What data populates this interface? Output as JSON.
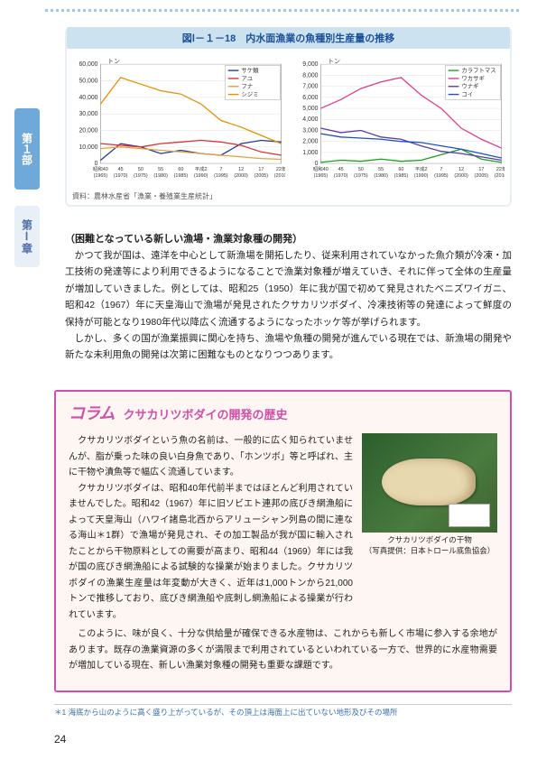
{
  "sideTabs": {
    "tab1": "第１部",
    "tab2": "第Ⅰ章"
  },
  "chartBlock": {
    "title": "図Ⅰ－１－18　内水面漁業の魚種別生産量の推移",
    "caption": "資料：農林水産省「漁業・養殖業生産統計」",
    "chart1": {
      "yUnit": "トン",
      "yMax": 60000,
      "yStep": 10000,
      "xLabelsTop": [
        "昭和40",
        "45",
        "50",
        "55",
        "60",
        "平成2",
        "7",
        "12",
        "17",
        "22年"
      ],
      "xLabelsBottom": [
        "(1965)",
        "(1970)",
        "(1975)",
        "(1980)",
        "(1985)",
        "(1990)",
        "(1995)",
        "(2000)",
        "(2005)",
        "(2010)"
      ],
      "series": [
        {
          "name": "サケ類",
          "color": "#1f3a9a",
          "values": [
            2000,
            12000,
            10000,
            6000,
            8000,
            6000,
            5000,
            12000,
            14000,
            13000
          ]
        },
        {
          "name": "アユ",
          "color": "#e03030",
          "values": [
            12000,
            11000,
            10000,
            12000,
            13000,
            14000,
            13000,
            11000,
            7000,
            5000
          ]
        },
        {
          "name": "フナ",
          "color": "#e9a03a",
          "values": [
            9000,
            10000,
            9000,
            8000,
            7000,
            6000,
            5000,
            4000,
            3000,
            2500
          ]
        },
        {
          "name": "シジミ",
          "color": "#e58f00",
          "values": [
            36000,
            52000,
            48000,
            44000,
            42000,
            36000,
            26000,
            22000,
            17000,
            12000
          ]
        }
      ]
    },
    "chart2": {
      "yUnit": "トン",
      "yMax": 9000,
      "yStep": 1000,
      "xLabelsTop": [
        "昭和40",
        "45",
        "50",
        "55",
        "60",
        "平成2",
        "7",
        "12",
        "17",
        "22年"
      ],
      "xLabelsBottom": [
        "(1965)",
        "(1970)",
        "(1975)",
        "(1980)",
        "(1985)",
        "(1990)",
        "(1995)",
        "(2000)",
        "(2005)",
        "(2010)"
      ],
      "series": [
        {
          "name": "カラフトマス",
          "color": "#1aa01a",
          "values": [
            100,
            300,
            200,
            400,
            200,
            300,
            800,
            1300,
            400,
            100
          ]
        },
        {
          "name": "ワカサギ",
          "color": "#e03a8e",
          "values": [
            5000,
            5800,
            6800,
            7400,
            7800,
            6200,
            5000,
            3200,
            2200,
            1400
          ]
        },
        {
          "name": "ウナギ",
          "color": "#5b3aa8",
          "values": [
            3200,
            2800,
            3000,
            2400,
            2200,
            1600,
            1100,
            900,
            600,
            300
          ]
        },
        {
          "name": "コイ",
          "color": "#1a50c0",
          "values": [
            2700,
            2400,
            2300,
            2200,
            2000,
            1900,
            1600,
            1300,
            900,
            500
          ]
        }
      ]
    },
    "style": {
      "bg": "#ffffff",
      "grid": "#d8d8d8",
      "axis": "#888",
      "text": "#333"
    }
  },
  "section": {
    "heading": "（困難となっている新しい漁場・漁業対象種の開発）",
    "paragraphs": [
      "　かつて我が国は、遠洋を中心として新漁場を開拓したり、従来利用されていなかった魚介類が冷凍・加工技術の発達等により利用できるようになることで漁業対象種が増えていき、それに伴って全体の生産量が増加していきました。例としては、昭和25（1950）年に我が国で初めて発見されたベニズワイガニ、昭和42（1967）年に天皇海山で漁場が発見されたクサカリツボダイ、冷凍技術等の発達によって鮮度の保持が可能となり1980年代以降広く流通するようになったホッケ等が挙げられます。",
      "　しかし、多くの国が漁業振興に関心を持ち、漁場や魚種の開発が進んでいる現在では、新漁場の開発や新たな未利用魚の開発は次第に困難なものとなりつつあります。"
    ]
  },
  "column": {
    "mark": "コラム",
    "title": "クサカリツボダイの開発の歴史",
    "paragraphs": [
      "　クサカリツボダイという魚の名前は、一般的に広く知られていませんが、脂が乗った味の良い白身魚であり、「ホンツボ」等と呼ばれ、主に干物や漬魚等で幅広く流通しています。",
      "　クサカリツボダイは、昭和40年代前半まではほとんど利用されていませんでした。昭和42（1967）年に旧ソビエト連邦の底びき網漁船によって天皇海山（ハワイ諸島北西からアリューシャン列島の間に連なる海山＊1群）で漁場が発見され、その加工製品が我が国に輸入されたことから干物原料としての需要が高まり、昭和44（1969）年には我が国の底びき網漁船による試験的な操業が始まりました。クサカリツボダイの漁業生産量は年変動が大きく、近年は1,000トンから21,000トンで推移しており、底びき網漁船や底刺し網漁船による操業が行われています。",
      "　このように、味が良く、十分な供給量が確保できる水産物は、これからも新しく市場に参入する余地があります。既存の漁業資源の多くが満限まで利用されているといわれている一方で、世界的に水産物需要が増加している現在、新しい漁業対象種の開発も重要な課題です。"
    ],
    "imageCaption": "クサカリツボダイの干物\n（写真提供：日本トロール底魚協会）"
  },
  "footnote": {
    "marker": "＊1",
    "text": "海底から山のように高く盛り上がっているが、その頂上は海面上に出ていない地形及びその場所"
  },
  "pageNumber": "24"
}
